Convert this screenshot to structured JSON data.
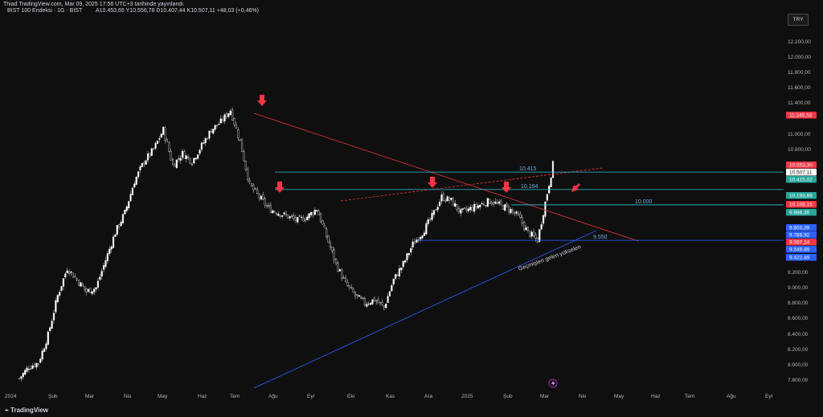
{
  "header": {
    "publisher": "Thiad TradingView.com, Mar 09, 2025 17:56 UTC+3 tarihinde yayınlandı",
    "symbol": "BIST 100 Endeksi · 1G · BIST",
    "ohlc": "A10.453,65  Y10.556,78  D10.407,44  K10.507,11  +48,03 (+0,46%)"
  },
  "currency": "TRY",
  "footer": {
    "brand": "TradingView"
  },
  "chart_data": {
    "type": "candlestick",
    "x_labels": [
      "2024",
      "Şub",
      "Mar",
      "Nis",
      "May",
      "Haz",
      "Tem",
      "Ağu",
      "Eyl",
      "Eki",
      "Kas",
      "Ara",
      "2025",
      "Şub",
      "Mar",
      "Nis",
      "May",
      "Haz",
      "Tem",
      "Ağu",
      "Eyl"
    ],
    "y_ticks": [
      "12.200,00",
      "12.000,00",
      "11.800,00",
      "11.600,00",
      "11.400,00",
      "11.000,00",
      "10.800,00",
      "9.200,00",
      "9.000,00",
      "8.800,00",
      "8.600,00",
      "8.400,00",
      "8.200,00",
      "8.000,00",
      "7.800,00"
    ],
    "ylim": [
      7750,
      12350
    ],
    "trend_closes": [
      [
        0,
        7800
      ],
      [
        5,
        7950
      ],
      [
        10,
        8000
      ],
      [
        15,
        8350
      ],
      [
        20,
        8850
      ],
      [
        25,
        9200
      ],
      [
        30,
        9050
      ],
      [
        35,
        8900
      ],
      [
        40,
        8950
      ],
      [
        45,
        9300
      ],
      [
        50,
        9650
      ],
      [
        55,
        9900
      ],
      [
        60,
        10300
      ],
      [
        65,
        10550
      ],
      [
        70,
        10700
      ],
      [
        75,
        10950
      ],
      [
        80,
        10500
      ],
      [
        85,
        10650
      ],
      [
        90,
        10550
      ],
      [
        95,
        10750
      ],
      [
        100,
        10950
      ],
      [
        105,
        11050
      ],
      [
        110,
        11200
      ],
      [
        115,
        10800
      ],
      [
        120,
        10250
      ],
      [
        125,
        10100
      ],
      [
        130,
        9950
      ],
      [
        135,
        9900
      ],
      [
        140,
        9850
      ],
      [
        145,
        9800
      ],
      [
        150,
        9850
      ],
      [
        155,
        9950
      ],
      [
        160,
        9600
      ],
      [
        165,
        9250
      ],
      [
        170,
        9000
      ],
      [
        175,
        8850
      ],
      [
        180,
        8750
      ],
      [
        185,
        8800
      ],
      [
        190,
        8700
      ],
      [
        195,
        9050
      ],
      [
        200,
        9250
      ],
      [
        205,
        9500
      ],
      [
        210,
        9650
      ],
      [
        215,
        9850
      ],
      [
        220,
        10100
      ],
      [
        225,
        10050
      ],
      [
        230,
        9900
      ],
      [
        235,
        9950
      ],
      [
        240,
        10000
      ],
      [
        245,
        10050
      ],
      [
        250,
        10000
      ],
      [
        255,
        9950
      ],
      [
        260,
        9850
      ],
      [
        265,
        9650
      ],
      [
        270,
        9550
      ],
      [
        275,
        10150
      ],
      [
        278,
        10507
      ]
    ],
    "price_labels": [
      {
        "text": "11.245,53",
        "color": "#f23645"
      },
      {
        "text": "10.553,30",
        "color": "#f23645"
      },
      {
        "text": "10.507,11",
        "color": "#ffffff"
      },
      {
        "text": "10.415,02",
        "color": "#26a69a"
      },
      {
        "text": "10.193,88",
        "color": "#26a69a"
      },
      {
        "text": "10.108,15",
        "color": "#f23645"
      },
      {
        "text": "9.986,30",
        "color": "#26a69a"
      },
      {
        "text": "9.803,39",
        "color": "#2962ff"
      },
      {
        "text": "9.788,92",
        "color": "#2962ff"
      },
      {
        "text": "9.597,24",
        "color": "#f23645"
      },
      {
        "text": "9.549,89",
        "color": "#2962ff"
      },
      {
        "text": "9.422,49",
        "color": "#2962ff"
      }
    ],
    "levels": [
      {
        "label": "10.415",
        "value": 10415,
        "color": "#26c6da"
      },
      {
        "label": "10.194",
        "value": 10194,
        "color": "#26c6da"
      },
      {
        "label": "10.000",
        "value": 10000,
        "color": "#26c6da"
      },
      {
        "label": "9.550",
        "value": 9550,
        "color": "#2962ff"
      }
    ],
    "annotation": "Geçmişten gelen yükselen"
  }
}
